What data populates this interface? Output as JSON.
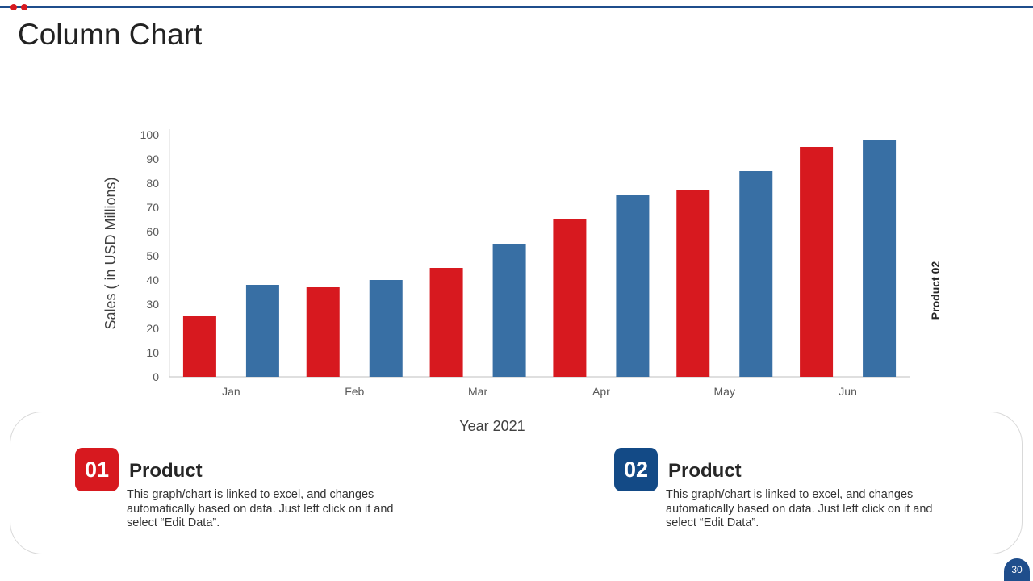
{
  "slide": {
    "title": "Column Chart",
    "page_number": "30",
    "colors": {
      "accent_red": "#d7191f",
      "accent_blue": "#386fa4",
      "navy": "#1f4e8c"
    }
  },
  "chart_data": {
    "type": "bar",
    "categories": [
      "Jan",
      "Feb",
      "Mar",
      "Apr",
      "May",
      "Jun"
    ],
    "series": [
      {
        "color": "#d7191f",
        "values": [
          25,
          37,
          45,
          65,
          77,
          95
        ]
      },
      {
        "name": "Product 02",
        "color": "#386fa4",
        "values": [
          38,
          40,
          55,
          75,
          85,
          98
        ]
      }
    ],
    "xlabel": "Year 2021",
    "ylabel": "Sales  ( in USD Millions)",
    "ylim": [
      0,
      100
    ],
    "yticks": [
      "0",
      "10",
      "20",
      "30",
      "40",
      "50",
      "60",
      "70",
      "80",
      "90",
      "100"
    ],
    "grid": false,
    "legend": "right, vertical"
  },
  "products": [
    {
      "number": "01",
      "title": "Product",
      "description": "This graph/chart is linked to excel, and changes automatically based on data. Just left click on it and select “Edit Data”.",
      "color": "#d7191f"
    },
    {
      "number": "02",
      "title": "Product",
      "description": "This graph/chart is linked to excel, and changes automatically based on data. Just left click on it and select “Edit Data”.",
      "color": "#134a86"
    }
  ]
}
